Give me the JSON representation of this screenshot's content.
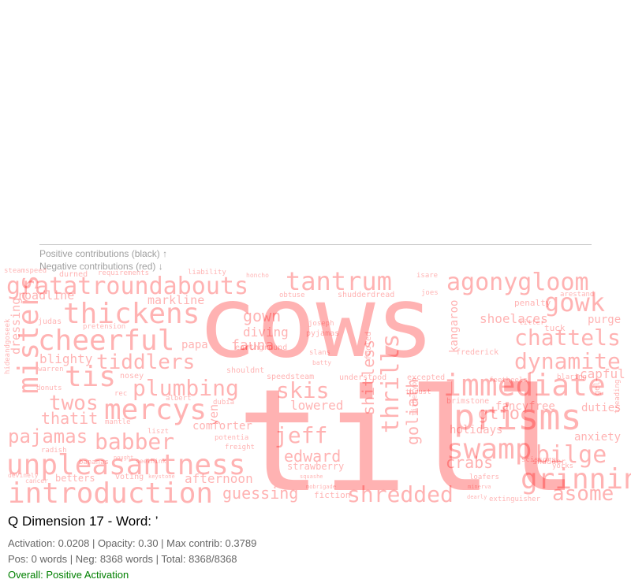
{
  "legend": {
    "positive": "Positive contributions (black) ↑",
    "negative": "Negative contributions (red) ↓"
  },
  "header": {
    "title": "Q Dimension 17 - Word: ’",
    "activation_line": "Activation: 0.0208 | Opacity: 0.30 | Max contrib: 0.3789",
    "counts_line": "Pos: 0 words | Neg: 8368 words | Total: 8368/8368",
    "overall": "Overall: Positive Activation"
  },
  "colors": {
    "negative_word": "#ff0000",
    "overall": "#008000"
  },
  "chart_data": {
    "type": "wordcloud",
    "opacity": 0.3,
    "words": [
      {
        "text": "cows",
        "sign": "negative"
      },
      {
        "text": "till",
        "sign": "negative"
      },
      {
        "text": "gratatroundabouts",
        "sign": "negative"
      },
      {
        "text": "tantrum",
        "sign": "negative"
      },
      {
        "text": "agonygloom",
        "sign": "negative"
      },
      {
        "text": "unpleasantness",
        "sign": "negative"
      },
      {
        "text": "introduction",
        "sign": "negative"
      },
      {
        "text": "prisms",
        "sign": "negative"
      },
      {
        "text": "swamp",
        "sign": "negative"
      },
      {
        "text": "grinnin",
        "sign": "negative"
      },
      {
        "text": "immediate",
        "sign": "negative"
      },
      {
        "text": "cheerful",
        "sign": "negative"
      },
      {
        "text": "thickens",
        "sign": "negative"
      },
      {
        "text": "mercys",
        "sign": "negative"
      },
      {
        "text": "gowk",
        "sign": "negative"
      },
      {
        "text": "misters",
        "sign": "negative"
      },
      {
        "text": "chattels",
        "sign": "negative"
      },
      {
        "text": "dynamite",
        "sign": "negative"
      },
      {
        "text": "shredded",
        "sign": "negative"
      },
      {
        "text": "babber",
        "sign": "negative"
      },
      {
        "text": "twos",
        "sign": "negative"
      },
      {
        "text": "tis",
        "sign": "negative"
      },
      {
        "text": "plumbing",
        "sign": "negative"
      },
      {
        "text": "tiddlers",
        "sign": "negative"
      },
      {
        "text": "jeff",
        "sign": "negative"
      },
      {
        "text": "skis",
        "sign": "negative"
      },
      {
        "text": "bilge",
        "sign": "negative"
      },
      {
        "text": "pajamas",
        "sign": "negative"
      },
      {
        "text": "thrills",
        "sign": "negative"
      },
      {
        "text": "asome",
        "sign": "negative"
      },
      {
        "text": "guessing",
        "sign": "negative"
      },
      {
        "text": "edward",
        "sign": "negative"
      },
      {
        "text": "thatit",
        "sign": "negative"
      },
      {
        "text": "crabs",
        "sign": "negative"
      },
      {
        "text": "gtfo",
        "sign": "negative"
      },
      {
        "text": "afternoon",
        "sign": "negative"
      },
      {
        "text": "gown",
        "sign": "negative"
      },
      {
        "text": "shitless",
        "sign": "negative"
      },
      {
        "text": "goliath",
        "sign": "negative"
      },
      {
        "text": "lowered",
        "sign": "negative"
      },
      {
        "text": "shoelaces",
        "sign": "negative"
      },
      {
        "text": "capful",
        "sign": "negative"
      },
      {
        "text": "fancyfree",
        "sign": "negative"
      },
      {
        "text": "duties",
        "sign": "negative"
      },
      {
        "text": "holidays",
        "sign": "negative"
      },
      {
        "text": "anxiety",
        "sign": "negative"
      },
      {
        "text": "blighty",
        "sign": "negative"
      },
      {
        "text": "markline",
        "sign": "negative"
      },
      {
        "text": "roadline",
        "sign": "negative"
      },
      {
        "text": "fauna",
        "sign": "negative"
      },
      {
        "text": "diving",
        "sign": "negative"
      },
      {
        "text": "papa",
        "sign": "negative"
      },
      {
        "text": "comforter",
        "sign": "negative"
      },
      {
        "text": "kangaroo",
        "sign": "negative"
      },
      {
        "text": "purge",
        "sign": "negative"
      },
      {
        "text": "betters",
        "sign": "negative"
      },
      {
        "text": "dressing",
        "sign": "negative"
      },
      {
        "text": "yen",
        "sign": "negative"
      },
      {
        "text": "strawberry",
        "sign": "negative"
      },
      {
        "text": "fiction",
        "sign": "negative"
      },
      {
        "text": "tuck",
        "sign": "negative"
      },
      {
        "text": "frederick",
        "sign": "negative"
      },
      {
        "text": "penalty",
        "sign": "negative"
      },
      {
        "text": "shudderdread",
        "sign": "negative"
      },
      {
        "text": "steamspeed",
        "sign": "negative"
      },
      {
        "text": "liability",
        "sign": "negative"
      },
      {
        "text": "honcho",
        "sign": "negative"
      },
      {
        "text": "isare",
        "sign": "negative"
      },
      {
        "text": "joes",
        "sign": "negative"
      },
      {
        "text": "obtuse",
        "sign": "negative"
      },
      {
        "text": "judas",
        "sign": "negative"
      },
      {
        "text": "warren",
        "sign": "negative"
      },
      {
        "text": "donuts",
        "sign": "negative"
      },
      {
        "text": "radish",
        "sign": "negative"
      },
      {
        "text": "bananas",
        "sign": "negative"
      },
      {
        "text": "voting",
        "sign": "negative"
      },
      {
        "text": "mantle",
        "sign": "negative"
      },
      {
        "text": "liszt",
        "sign": "negative"
      },
      {
        "text": "potentia",
        "sign": "negative"
      },
      {
        "text": "freight",
        "sign": "negative"
      },
      {
        "text": "dubia",
        "sign": "negative"
      },
      {
        "text": "albert",
        "sign": "negative"
      },
      {
        "text": "nosey",
        "sign": "negative"
      },
      {
        "text": "rec",
        "sign": "negative"
      },
      {
        "text": "pretension",
        "sign": "negative"
      },
      {
        "text": "durned",
        "sign": "negative"
      },
      {
        "text": "requirements",
        "sign": "negative"
      },
      {
        "text": "earthground",
        "sign": "negative"
      },
      {
        "text": "shouldnt",
        "sign": "negative"
      },
      {
        "text": "speedsteam",
        "sign": "negative"
      },
      {
        "text": "understood",
        "sign": "negative"
      },
      {
        "text": "excepted",
        "sign": "negative"
      },
      {
        "text": "brimstone",
        "sign": "negative"
      },
      {
        "text": "feetheels",
        "sign": "negative"
      },
      {
        "text": "blaring",
        "sign": "negative"
      },
      {
        "text": "shudder",
        "sign": "negative"
      },
      {
        "text": "scissors",
        "sign": "negative"
      },
      {
        "text": "extinguisher",
        "sign": "negative"
      },
      {
        "text": "loafers",
        "sign": "negative"
      },
      {
        "text": "slans",
        "sign": "negative"
      },
      {
        "text": "pyjamas",
        "sign": "negative"
      },
      {
        "text": "joseph",
        "sign": "negative"
      },
      {
        "text": "batty",
        "sign": "negative"
      },
      {
        "text": "fooled",
        "sign": "negative"
      },
      {
        "text": "thrust",
        "sign": "negative"
      },
      {
        "text": "titheryon",
        "sign": "negative"
      },
      {
        "text": "arestand",
        "sign": "negative"
      },
      {
        "text": "titter",
        "sign": "negative"
      },
      {
        "text": "yorks",
        "sign": "negative"
      },
      {
        "text": "hideandgoseek",
        "sign": "negative"
      },
      {
        "text": "gel",
        "sign": "negative"
      },
      {
        "text": "treading",
        "sign": "negative"
      },
      {
        "text": "devinely",
        "sign": "negative"
      },
      {
        "text": "cancer",
        "sign": "negative"
      },
      {
        "text": "keystone",
        "sign": "negative"
      },
      {
        "text": "seethink",
        "sign": "negative"
      },
      {
        "text": "nought",
        "sign": "negative"
      },
      {
        "text": "mobrigade",
        "sign": "negative"
      },
      {
        "text": "squashe",
        "sign": "negative"
      },
      {
        "text": "dearly",
        "sign": "negative"
      },
      {
        "text": "minerva",
        "sign": "negative"
      }
    ]
  }
}
